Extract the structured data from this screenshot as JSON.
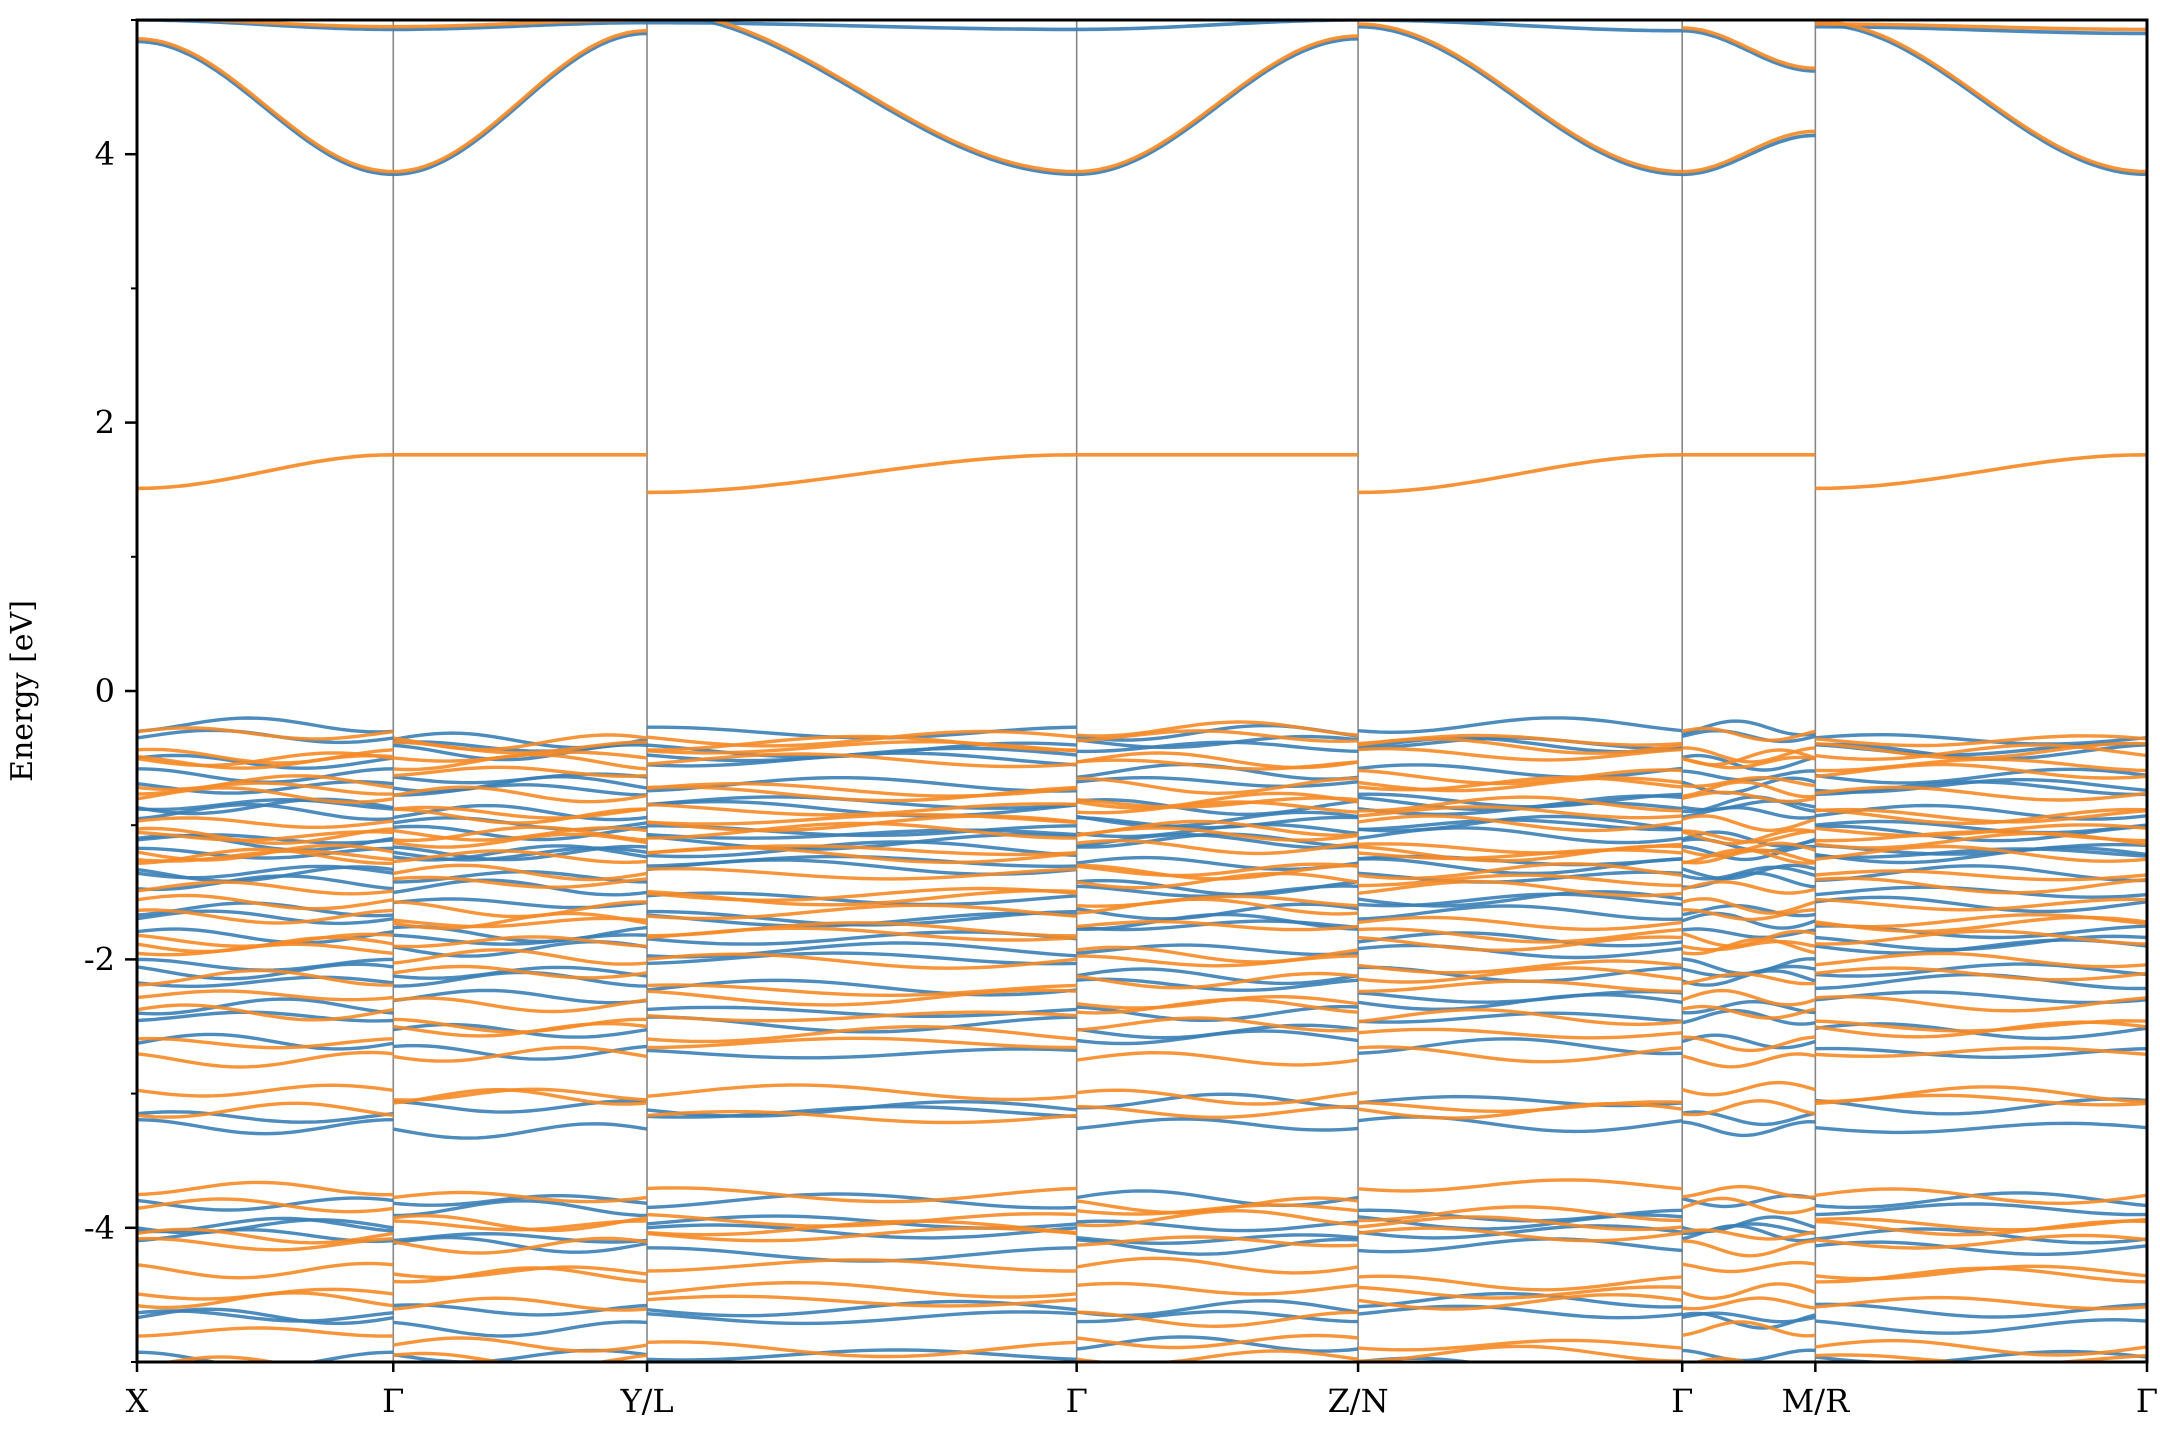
{
  "chart_data": {
    "type": "line",
    "title": "",
    "xlabel": "",
    "ylabel": "Energy [eV]",
    "ylim": [
      -5,
      5
    ],
    "xlim": [
      0,
      8.0
    ],
    "grid": false,
    "legend": "none",
    "yticks": [
      {
        "value": 4,
        "label": "4"
      },
      {
        "value": 2,
        "label": "2"
      },
      {
        "value": 0,
        "label": "0"
      },
      {
        "value": -2,
        "label": "-2"
      },
      {
        "value": -4,
        "label": "-4"
      }
    ],
    "yticks_minor": [
      5,
      3,
      1,
      -1,
      -3,
      -5
    ],
    "kpoints": [
      {
        "pos": 0.0,
        "label": "X"
      },
      {
        "pos": 1.02,
        "label": "Γ"
      },
      {
        "pos": 2.03,
        "label": "Y/L"
      },
      {
        "pos": 3.74,
        "label": "Γ"
      },
      {
        "pos": 4.86,
        "label": "Z/N"
      },
      {
        "pos": 6.15,
        "label": "Γ"
      },
      {
        "pos": 6.68,
        "label": "M/R"
      },
      {
        "pos": 8.0,
        "label": "Γ"
      }
    ],
    "colors": {
      "spin_up": "#3a7fb6",
      "spin_down": "#f68a26",
      "kline": "#888888"
    },
    "series": [
      {
        "color": "#3a7fb6",
        "segments": [
          {
            "x0": 0.0,
            "x1": 1.02,
            "y0": 4.84,
            "y1": 3.85
          },
          {
            "x0": 1.02,
            "x1": 2.03,
            "y0": 3.85,
            "y1": 4.9
          },
          {
            "x0": 2.03,
            "x1": 3.74,
            "y0": 5.05,
            "y1": 3.85
          },
          {
            "x0": 3.74,
            "x1": 4.86,
            "y0": 3.85,
            "y1": 4.86
          },
          {
            "x0": 4.86,
            "x1": 6.15,
            "y0": 4.95,
            "y1": 3.85
          },
          {
            "x0": 6.15,
            "x1": 6.68,
            "y0": 3.85,
            "y1": 4.14
          },
          {
            "x0": 6.68,
            "x1": 8.0,
            "y0": 4.97,
            "y1": 3.85
          },
          {
            "x0": 0.0,
            "x1": 1.02,
            "y0": 5.0,
            "y1": 4.93
          },
          {
            "x0": 1.02,
            "x1": 2.03,
            "y0": 4.93,
            "y1": 4.98
          },
          {
            "x0": 2.03,
            "x1": 3.74,
            "y0": 4.98,
            "y1": 4.93
          },
          {
            "x0": 3.74,
            "x1": 4.86,
            "y0": 4.93,
            "y1": 5.0
          },
          {
            "x0": 4.86,
            "x1": 6.15,
            "y0": 5.0,
            "y1": 4.92
          },
          {
            "x0": 6.15,
            "x1": 6.68,
            "y0": 4.92,
            "y1": 4.62
          },
          {
            "x0": 6.68,
            "x1": 8.0,
            "y0": 4.95,
            "y1": 4.9
          }
        ]
      },
      {
        "color": "#f68a26",
        "segments": [
          {
            "x0": 0.0,
            "x1": 1.02,
            "y0": 4.86,
            "y1": 3.87
          },
          {
            "x0": 1.02,
            "x1": 2.03,
            "y0": 3.87,
            "y1": 4.92
          },
          {
            "x0": 2.03,
            "x1": 3.74,
            "y0": 5.07,
            "y1": 3.87
          },
          {
            "x0": 3.74,
            "x1": 4.86,
            "y0": 3.87,
            "y1": 4.88
          },
          {
            "x0": 4.86,
            "x1": 6.15,
            "y0": 4.97,
            "y1": 3.87
          },
          {
            "x0": 6.15,
            "x1": 6.68,
            "y0": 3.87,
            "y1": 4.17
          },
          {
            "x0": 6.68,
            "x1": 8.0,
            "y0": 4.99,
            "y1": 3.87
          },
          {
            "x0": 0.0,
            "x1": 1.02,
            "y0": 5.01,
            "y1": 4.95
          },
          {
            "x0": 1.02,
            "x1": 2.03,
            "y0": 4.95,
            "y1": 5.0
          },
          {
            "x0": 6.15,
            "x1": 6.68,
            "y0": 4.94,
            "y1": 4.64
          },
          {
            "x0": 6.68,
            "x1": 8.0,
            "y0": 4.97,
            "y1": 4.93
          },
          {
            "x0": 0.0,
            "x1": 1.02,
            "y0": 1.51,
            "y1": 1.76
          },
          {
            "x0": 1.02,
            "x1": 2.03,
            "y0": 1.76,
            "y1": 1.76
          },
          {
            "x0": 2.03,
            "x1": 3.74,
            "y0": 1.48,
            "y1": 1.76
          },
          {
            "x0": 3.74,
            "x1": 4.86,
            "y0": 1.76,
            "y1": 1.76
          },
          {
            "x0": 4.86,
            "x1": 6.15,
            "y0": 1.48,
            "y1": 1.76
          },
          {
            "x0": 6.15,
            "x1": 6.68,
            "y0": 1.76,
            "y1": 1.76
          },
          {
            "x0": 6.68,
            "x1": 8.0,
            "y0": 1.51,
            "y1": 1.76
          }
        ]
      }
    ],
    "valence_bands": {
      "spin_up": [
        -0.32,
        -0.38,
        -0.45,
        -0.6,
        -0.72,
        -0.82,
        -0.9,
        -0.98,
        -1.06,
        -1.12,
        -1.2,
        -1.28,
        -1.38,
        -1.5,
        -1.62,
        -1.72,
        -1.82,
        -1.95,
        -2.08,
        -2.2,
        -2.35,
        -2.48,
        -2.65,
        -3.1,
        -3.22,
        -3.82,
        -3.95,
        -4.05,
        -4.12,
        -4.62,
        -4.66,
        -4.95
      ],
      "spin_down": [
        -0.35,
        -0.4,
        -0.48,
        -0.55,
        -0.68,
        -0.76,
        -0.85,
        -0.93,
        -1.02,
        -1.1,
        -1.16,
        -1.25,
        -1.33,
        -1.45,
        -1.55,
        -1.68,
        -1.78,
        -1.88,
        -2.0,
        -2.15,
        -2.28,
        -2.42,
        -2.55,
        -2.7,
        -3.02,
        -3.12,
        -3.75,
        -3.9,
        -4.0,
        -4.08,
        -4.32,
        -4.45,
        -4.58,
        -4.85,
        -5.0
      ]
    }
  }
}
